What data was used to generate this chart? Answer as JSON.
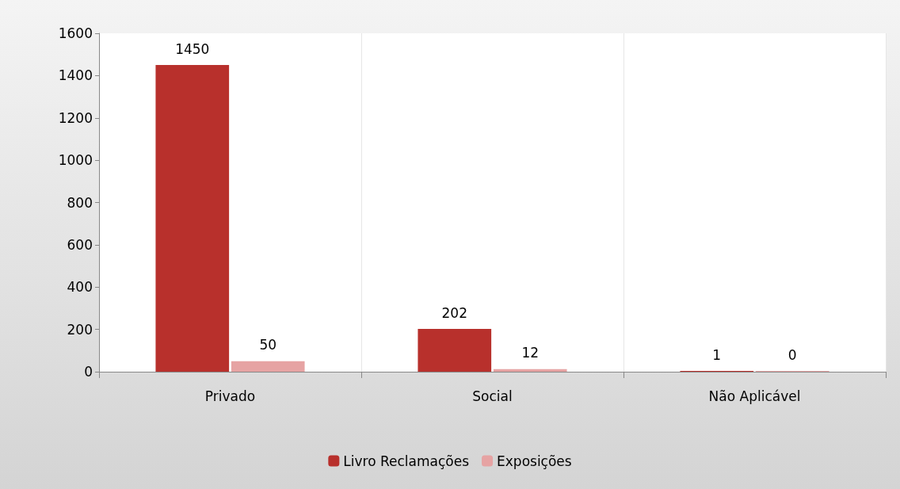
{
  "chart_data": {
    "type": "bar",
    "categories": [
      "Privado",
      "Social",
      "Não Aplicável"
    ],
    "series": [
      {
        "name": "Livro Reclamações",
        "color": "#b8302c",
        "values": [
          1450,
          202,
          1
        ]
      },
      {
        "name": "Exposições",
        "color": "#e6a3a3",
        "values": [
          50,
          12,
          0
        ]
      }
    ],
    "ylim": [
      0,
      1600
    ],
    "yticks": [
      0,
      200,
      400,
      600,
      800,
      1000,
      1200,
      1400,
      1600
    ],
    "grid": false,
    "legend": "bottom",
    "data_labels": true
  }
}
